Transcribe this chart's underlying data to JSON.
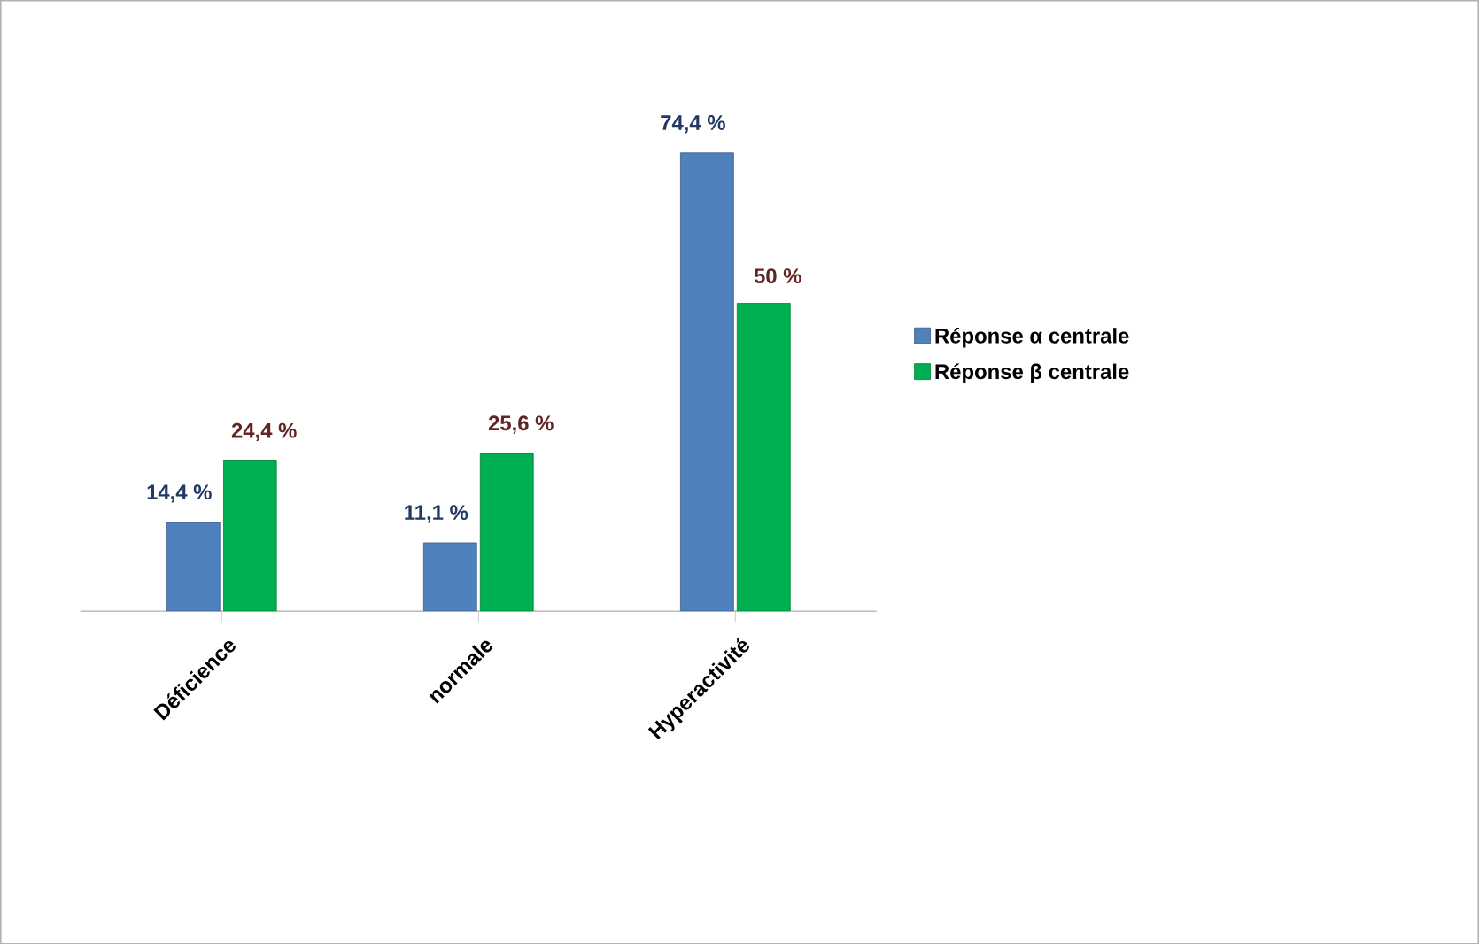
{
  "chart_data": {
    "type": "bar",
    "categories": [
      "Déficience",
      "normale",
      "Hyperactivité"
    ],
    "series": [
      {
        "name": "Réponse α centrale",
        "color": "#4f81bd",
        "values": [
          14.4,
          11.1,
          74.4
        ],
        "value_labels": [
          "14,4 %",
          "11,1 %",
          "74,4 %"
        ]
      },
      {
        "name": "Réponse β centrale",
        "color": "#00b050",
        "values": [
          24.4,
          25.6,
          50
        ],
        "value_labels": [
          "24,4 %",
          "25,6 %",
          "50 %"
        ]
      }
    ],
    "legend": "right"
  }
}
